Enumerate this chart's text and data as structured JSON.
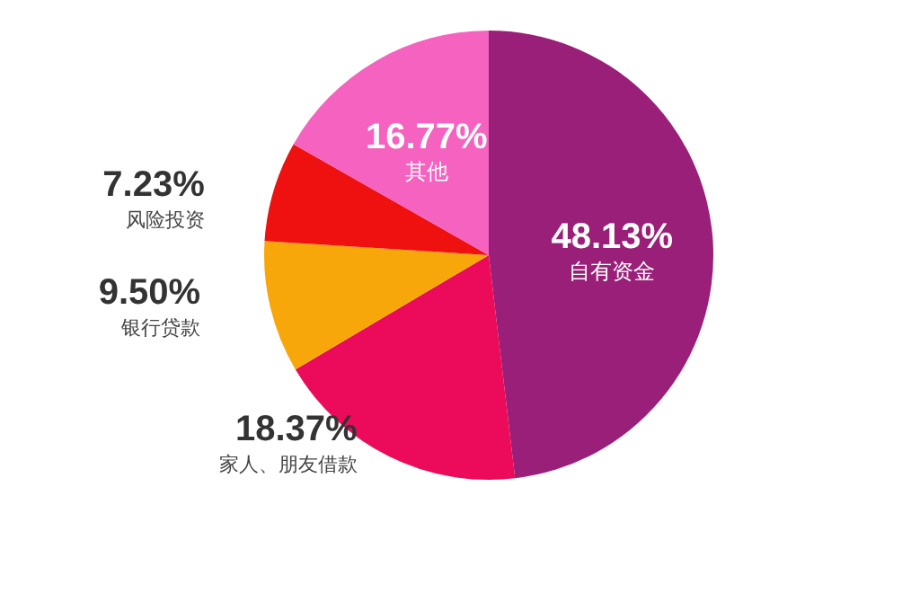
{
  "chart_data": {
    "type": "pie",
    "categories": [
      "自有资金",
      "家人、朋友借款",
      "银行贷款",
      "风险投资",
      "其他"
    ],
    "values": [
      48.13,
      18.37,
      9.5,
      7.23,
      16.77
    ],
    "colors": [
      "#9a1f78",
      "#ec0a5a",
      "#f7a70a",
      "#ef1010",
      "#f562c0"
    ],
    "value_labels": [
      "48.13%",
      "18.37%",
      "9.50%",
      "7.23%",
      "16.77%"
    ],
    "legend": false
  }
}
